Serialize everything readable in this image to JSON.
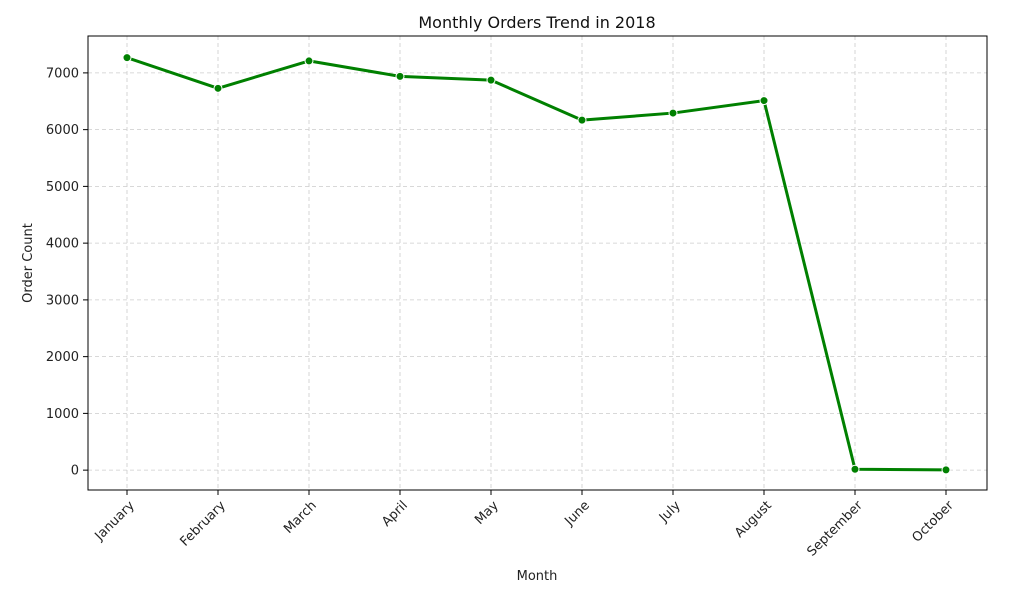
{
  "chart_data": {
    "type": "line",
    "title": "Monthly Orders Trend in 2018",
    "xlabel": "Month",
    "ylabel": "Order Count",
    "categories": [
      "January",
      "February",
      "March",
      "April",
      "May",
      "June",
      "July",
      "August",
      "September",
      "October"
    ],
    "series": [
      {
        "values": [
          7269,
          6728,
          7211,
          6939,
          6873,
          6167,
          6292,
          6512,
          16,
          4
        ]
      }
    ],
    "ylim": [
      -350,
      7650
    ],
    "yticks": [
      0,
      1000,
      2000,
      3000,
      4000,
      5000,
      6000,
      7000
    ],
    "grid": true,
    "grid_style": "dashed",
    "line_color": "#008000",
    "marker": "circle"
  }
}
